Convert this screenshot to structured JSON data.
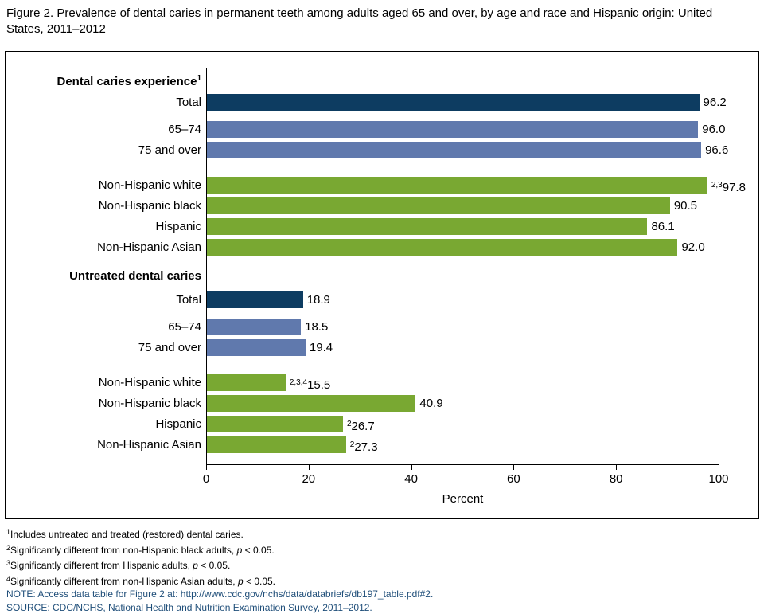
{
  "title": "Figure 2. Prevalence of dental caries in permanent teeth among adults aged 65 and over, by age and race and Hispanic origin: United States, 2011–2012",
  "colors": {
    "navy": "#0d3c61",
    "blue": "#6079ad",
    "green": "#79a832",
    "note_blue": "#1f4e79"
  },
  "chart_data": {
    "type": "bar",
    "orientation": "horizontal",
    "xlabel": "Percent",
    "xlim": [
      0,
      100
    ],
    "xticks": [
      0,
      20,
      40,
      60,
      80,
      100
    ],
    "groups": [
      {
        "header": "Dental caries experience",
        "header_sup": "1",
        "rows": [
          {
            "label": "Total",
            "value": 96.2,
            "display": "96.2",
            "sup": "",
            "color": "navy"
          },
          {
            "label": "65–74",
            "value": 96.0,
            "display": "96.0",
            "sup": "",
            "color": "blue"
          },
          {
            "label": "75 and over",
            "value": 96.6,
            "display": "96.6",
            "sup": "",
            "color": "blue"
          },
          {
            "label": "Non-Hispanic white",
            "value": 97.8,
            "display": "97.8",
            "sup": "2,3",
            "color": "green"
          },
          {
            "label": "Non-Hispanic black",
            "value": 90.5,
            "display": "90.5",
            "sup": "",
            "color": "green"
          },
          {
            "label": "Hispanic",
            "value": 86.1,
            "display": "86.1",
            "sup": "",
            "color": "green"
          },
          {
            "label": "Non-Hispanic Asian",
            "value": 92.0,
            "display": "92.0",
            "sup": "",
            "color": "green"
          }
        ]
      },
      {
        "header": "Untreated dental caries",
        "header_sup": "",
        "rows": [
          {
            "label": "Total",
            "value": 18.9,
            "display": "18.9",
            "sup": "",
            "color": "navy"
          },
          {
            "label": "65–74",
            "value": 18.5,
            "display": "18.5",
            "sup": "",
            "color": "blue"
          },
          {
            "label": "75 and over",
            "value": 19.4,
            "display": "19.4",
            "sup": "",
            "color": "blue"
          },
          {
            "label": "Non-Hispanic white",
            "value": 15.5,
            "display": "15.5",
            "sup": "2,3,4",
            "color": "green"
          },
          {
            "label": "Non-Hispanic black",
            "value": 40.9,
            "display": "40.9",
            "sup": "",
            "color": "green"
          },
          {
            "label": "Hispanic",
            "value": 26.7,
            "display": "26.7",
            "sup": "2",
            "color": "green"
          },
          {
            "label": "Non-Hispanic Asian",
            "value": 27.3,
            "display": "27.3",
            "sup": "2",
            "color": "green"
          }
        ]
      }
    ]
  },
  "footnotes": [
    {
      "sup": "1",
      "text": "Includes untreated and treated (restored) dental caries."
    },
    {
      "sup": "2",
      "text": "Significantly different from non-Hispanic black adults, p < 0.05."
    },
    {
      "sup": "3",
      "text": "Significantly different from Hispanic adults, p < 0.05."
    },
    {
      "sup": "4",
      "text": "Significantly different from non-Hispanic Asian adults, p < 0.05."
    }
  ],
  "note": "NOTE: Access data table for Figure 2 at: http://www.cdc.gov/nchs/data/databriefs/db197_table.pdf#2.",
  "source": "SOURCE: CDC/NCHS, National Health and Nutrition Examination Survey, 2011–2012."
}
